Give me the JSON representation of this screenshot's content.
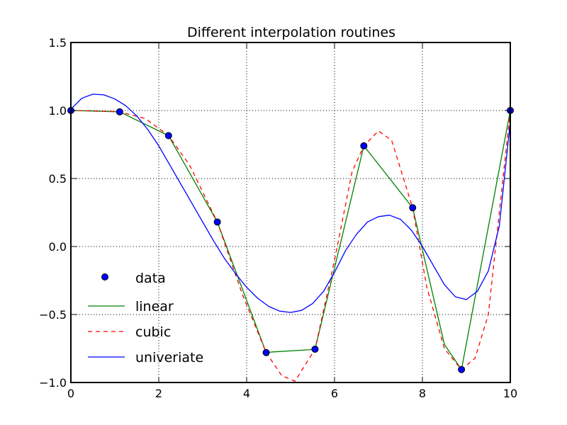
{
  "chart_data": {
    "type": "line",
    "title": "Different interpolation routines",
    "xlabel": "",
    "ylabel": "",
    "xlim": [
      0,
      10
    ],
    "ylim": [
      -1.0,
      1.5
    ],
    "xticks": [
      0,
      2,
      4,
      6,
      8,
      10
    ],
    "yticks": [
      -1.0,
      -0.5,
      0.0,
      0.5,
      1.0,
      1.5
    ],
    "ytick_labels": [
      "−1.0",
      "−0.5",
      "0.0",
      "0.5",
      "1.0",
      "1.5"
    ],
    "grid": true,
    "legend_position": "lower-left",
    "series": [
      {
        "name": "data",
        "style": "markers",
        "color": "#0000ff",
        "x": [
          0,
          1.111,
          2.222,
          3.333,
          4.444,
          5.556,
          6.667,
          7.778,
          8.889,
          10
        ],
        "y": [
          1.0,
          0.99,
          0.815,
          0.18,
          -0.78,
          -0.755,
          0.74,
          0.285,
          -0.905,
          1.0
        ]
      },
      {
        "name": "linear",
        "style": "solid",
        "color": "#008000",
        "x": [
          0,
          1.111,
          2.222,
          3.333,
          4.444,
          4.6,
          5.4,
          5.556,
          6.667,
          7.778,
          8.5,
          8.889,
          10
        ],
        "y": [
          1.0,
          0.99,
          0.815,
          0.18,
          -0.78,
          -0.775,
          -0.76,
          -0.755,
          0.74,
          0.285,
          -0.72,
          -0.905,
          1.0
        ]
      },
      {
        "name": "cubic",
        "style": "dashed",
        "color": "#ff0000",
        "x": [
          0,
          0.5,
          1.111,
          1.7,
          2.222,
          2.7,
          3.333,
          3.9,
          4.444,
          4.8,
          5.1,
          5.556,
          6.0,
          6.4,
          6.667,
          7.0,
          7.3,
          7.778,
          8.1,
          8.5,
          8.889,
          9.2,
          9.5,
          10
        ],
        "y": [
          1.0,
          0.998,
          0.99,
          0.94,
          0.815,
          0.6,
          0.18,
          -0.35,
          -0.78,
          -0.95,
          -0.99,
          -0.755,
          -0.1,
          0.55,
          0.74,
          0.85,
          0.78,
          0.285,
          -0.3,
          -0.75,
          -0.905,
          -0.82,
          -0.5,
          1.0
        ]
      },
      {
        "name": "univeriate",
        "style": "solid",
        "color": "#0000ff",
        "x": [
          0,
          0.25,
          0.5,
          0.75,
          1.0,
          1.25,
          1.5,
          1.75,
          2.0,
          2.25,
          2.5,
          2.75,
          3.0,
          3.25,
          3.5,
          3.75,
          4.0,
          4.25,
          4.5,
          4.75,
          5.0,
          5.25,
          5.5,
          5.75,
          6.0,
          6.25,
          6.5,
          6.75,
          7.0,
          7.25,
          7.5,
          7.75,
          8.0,
          8.25,
          8.5,
          8.75,
          9.0,
          9.25,
          9.5,
          9.75,
          10
        ],
        "y": [
          1.01,
          1.09,
          1.12,
          1.115,
          1.085,
          1.035,
          0.96,
          0.86,
          0.74,
          0.6,
          0.46,
          0.32,
          0.18,
          0.04,
          -0.09,
          -0.2,
          -0.3,
          -0.38,
          -0.44,
          -0.475,
          -0.485,
          -0.47,
          -0.42,
          -0.33,
          -0.19,
          -0.03,
          0.09,
          0.18,
          0.22,
          0.23,
          0.2,
          0.12,
          0.0,
          -0.14,
          -0.28,
          -0.37,
          -0.39,
          -0.33,
          -0.18,
          0.15,
          0.92
        ]
      }
    ]
  }
}
